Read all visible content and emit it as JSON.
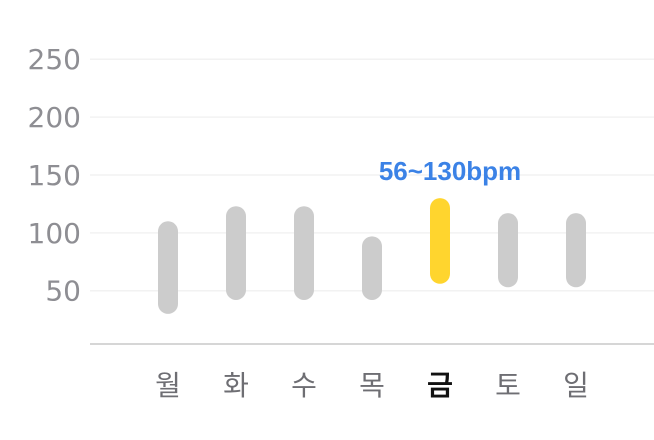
{
  "chart_data": {
    "type": "bar",
    "chart_kind": "range-bar",
    "categories": [
      "월",
      "화",
      "수",
      "목",
      "금",
      "토",
      "일"
    ],
    "ranges": [
      {
        "min": 30,
        "max": 110
      },
      {
        "min": 42,
        "max": 123
      },
      {
        "min": 42,
        "max": 123
      },
      {
        "min": 42,
        "max": 97
      },
      {
        "min": 56,
        "max": 130
      },
      {
        "min": 53,
        "max": 117
      },
      {
        "min": 53,
        "max": 117
      }
    ],
    "yticks": [
      50,
      100,
      150,
      200,
      250
    ],
    "ylim": [
      0,
      260
    ],
    "grid": true,
    "selected_index": 4,
    "selected_label": "56~130bpm",
    "colors": {
      "bar": "#cccccc",
      "selected_bar": "#ffd52e",
      "selected_label": "#3b82e6"
    }
  }
}
